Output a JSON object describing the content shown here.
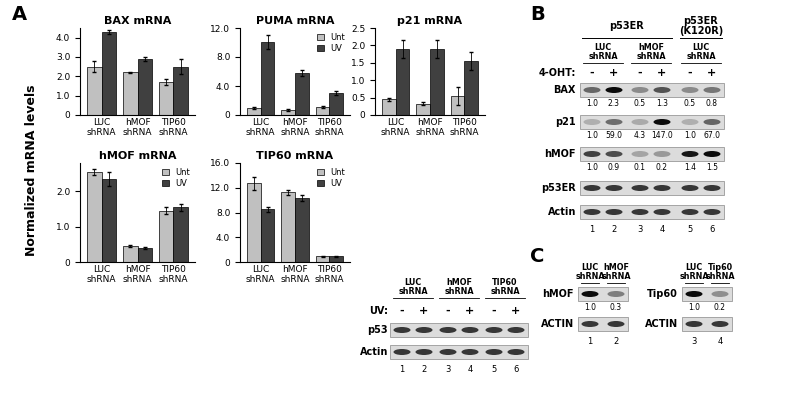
{
  "panel_labels": [
    "A",
    "B",
    "C"
  ],
  "y_label": "Normalized mRNA levels",
  "chart_data": [
    {
      "type": "bar",
      "title": "BAX mRNA",
      "categories": [
        "LUC\nshRNA",
        "hMOF\nshRNA",
        "TIP60\nshRNA"
      ],
      "series": [
        {
          "color": "#c0c0c0",
          "values": [
            2.5,
            2.2,
            1.7
          ],
          "errors": [
            0.3,
            0.05,
            0.15
          ]
        },
        {
          "color": "#404040",
          "values": [
            4.3,
            2.9,
            2.5
          ],
          "errors": [
            0.1,
            0.1,
            0.4
          ]
        }
      ],
      "ylim": [
        0,
        4.5
      ],
      "yticks": [
        0,
        {
          "value": 1,
          "label": "1.0"
        },
        {
          "value": 2,
          "label": "2.0"
        },
        {
          "value": 3,
          "label": "3.0"
        },
        {
          "value": 4,
          "label": "4.0"
        }
      ]
    },
    {
      "type": "bar",
      "title": "PUMA mRNA",
      "categories": [
        "LUC\nshRNA",
        "hMOF\nshRNA",
        "TIP60\nshRNA"
      ],
      "series": [
        {
          "name": "Unt",
          "color": "#c0c0c0",
          "values": [
            1.0,
            0.7,
            1.1
          ],
          "errors": [
            0.15,
            0.1,
            0.1
          ]
        },
        {
          "name": "UV",
          "color": "#404040",
          "values": [
            10.1,
            5.8,
            3.0
          ],
          "errors": [
            1.0,
            0.4,
            0.3
          ]
        }
      ],
      "ylim": [
        0,
        12
      ],
      "yticks": [
        0,
        {
          "value": 4,
          "label": "4.0"
        },
        {
          "value": 8,
          "label": "8.0"
        },
        {
          "value": 12,
          "label": "12.0"
        }
      ],
      "legend": "upper right"
    },
    {
      "type": "bar",
      "title": "p21 mRNA",
      "categories": [
        "LUC\nshRNA",
        "hMOF\nshRNA",
        "TIP60\nshRNA"
      ],
      "series": [
        {
          "color": "#c0c0c0",
          "values": [
            0.45,
            0.33,
            0.55
          ],
          "errors": [
            0.05,
            0.05,
            0.25
          ]
        },
        {
          "color": "#404040",
          "values": [
            1.9,
            1.9,
            1.55
          ],
          "errors": [
            0.25,
            0.25,
            0.25
          ]
        }
      ],
      "ylim": [
        0,
        2.5
      ],
      "yticks": [
        0,
        0.5,
        {
          "value": 1,
          "label": "1.0"
        },
        1.5,
        {
          "value": 2,
          "label": "2.0"
        },
        2.5
      ]
    },
    {
      "type": "bar",
      "title": "hMOF mRNA",
      "categories": [
        "LUC\nshRNA",
        "hMOF\nshRNA",
        "TIP60\nshRNA"
      ],
      "series": [
        {
          "name": "Unt",
          "color": "#c0c0c0",
          "values": [
            2.55,
            0.45,
            1.45
          ],
          "errors": [
            0.08,
            0.03,
            0.1
          ]
        },
        {
          "name": "UV",
          "color": "#404040",
          "values": [
            2.35,
            0.4,
            1.55
          ],
          "errors": [
            0.2,
            0.03,
            0.1
          ]
        }
      ],
      "ylim": [
        0,
        2.8
      ],
      "yticks": [
        0,
        {
          "value": 1,
          "label": "1.0"
        },
        {
          "value": 2,
          "label": "2.0"
        }
      ],
      "legend": "upper right"
    },
    {
      "type": "bar",
      "title": "TIP60 mRNA",
      "categories": [
        "LUC\nshRNA",
        "hMOF\nshRNA",
        "TIP60\nshRNA"
      ],
      "series": [
        {
          "name": "Unt",
          "color": "#c0c0c0",
          "values": [
            12.7,
            11.3,
            0.9
          ],
          "errors": [
            1.0,
            0.4,
            0.1
          ]
        },
        {
          "name": "UV",
          "color": "#404040",
          "values": [
            8.5,
            10.4,
            0.9
          ],
          "errors": [
            0.4,
            0.5,
            0.1
          ]
        }
      ],
      "ylim": [
        0,
        16
      ],
      "yticks": [
        0,
        {
          "value": 4,
          "label": "4.0"
        },
        {
          "value": 8,
          "label": "8.0"
        },
        {
          "value": 12,
          "label": "12.0"
        },
        {
          "value": 16,
          "label": "16.0"
        }
      ],
      "legend": "upper right"
    }
  ],
  "blots": [
    {
      "groups": [
        {
          "label": "LUC\nshRNA",
          "lanes": 2
        },
        {
          "label": "hMOF\nshRNA",
          "lanes": 2
        },
        {
          "label": "TIP60\nshRNA",
          "lanes": 2
        }
      ],
      "treatment": "UV:",
      "lanes": [
        "-",
        "+",
        "-",
        "+",
        "-",
        "+"
      ],
      "rows": [
        {
          "name": "p53"
        },
        {
          "name": "Actin"
        }
      ],
      "lane_numbers": [
        "1",
        "2",
        "3",
        "4",
        "5",
        "6"
      ]
    },
    {
      "top_groups": [
        {
          "label": "p53ER",
          "lanes": 4
        },
        {
          "label": "p53ER\n(K120R)",
          "lanes": 2
        }
      ],
      "groups": [
        {
          "label": "LUC\nshRNA",
          "lanes": 2
        },
        {
          "label": "hMOF\nshRNA",
          "lanes": 2
        },
        {
          "label": "LUC\nshRNA",
          "lanes": 2
        }
      ],
      "treatment": "4-OHT:",
      "lanes": [
        "-",
        "+",
        "-",
        "+",
        "-",
        "+"
      ],
      "rows": [
        {
          "name": "BAX",
          "quant": [
            "1.0",
            "2.3",
            "0.5",
            "1.3",
            "0.5",
            "0.8"
          ]
        },
        {
          "name": "p21",
          "quant": [
            "1.0",
            "59.0",
            "4.3",
            "147.0",
            "1.0",
            "67.0"
          ]
        },
        {
          "name": "hMOF",
          "quant": [
            "1.0",
            "0.9",
            "0.1",
            "0.2",
            "1.4",
            "1.5"
          ]
        },
        {
          "name": "p53ER"
        },
        {
          "name": "Actin"
        }
      ],
      "lane_numbers": [
        "1",
        "2",
        "3",
        "4",
        "5",
        "6"
      ]
    },
    {
      "groups": [
        {
          "label": "LUC\nshRNA",
          "lanes": 1
        },
        {
          "label": "hMOF\nshRNA",
          "lanes": 1
        }
      ],
      "rows": [
        {
          "name": "hMOF",
          "quant": [
            "1.0",
            "0.3"
          ]
        },
        {
          "name": "ACTIN"
        }
      ],
      "lane_numbers": [
        "1",
        "2"
      ]
    },
    {
      "groups": [
        {
          "label": "LUC\nshRNA",
          "lanes": 1
        },
        {
          "label": "Tip60\nshRNA",
          "lanes": 1
        }
      ],
      "rows": [
        {
          "name": "Tip60",
          "quant": [
            "1.0",
            "0.2"
          ]
        },
        {
          "name": "ACTIN"
        }
      ],
      "lane_numbers": [
        "3",
        "4"
      ]
    }
  ]
}
